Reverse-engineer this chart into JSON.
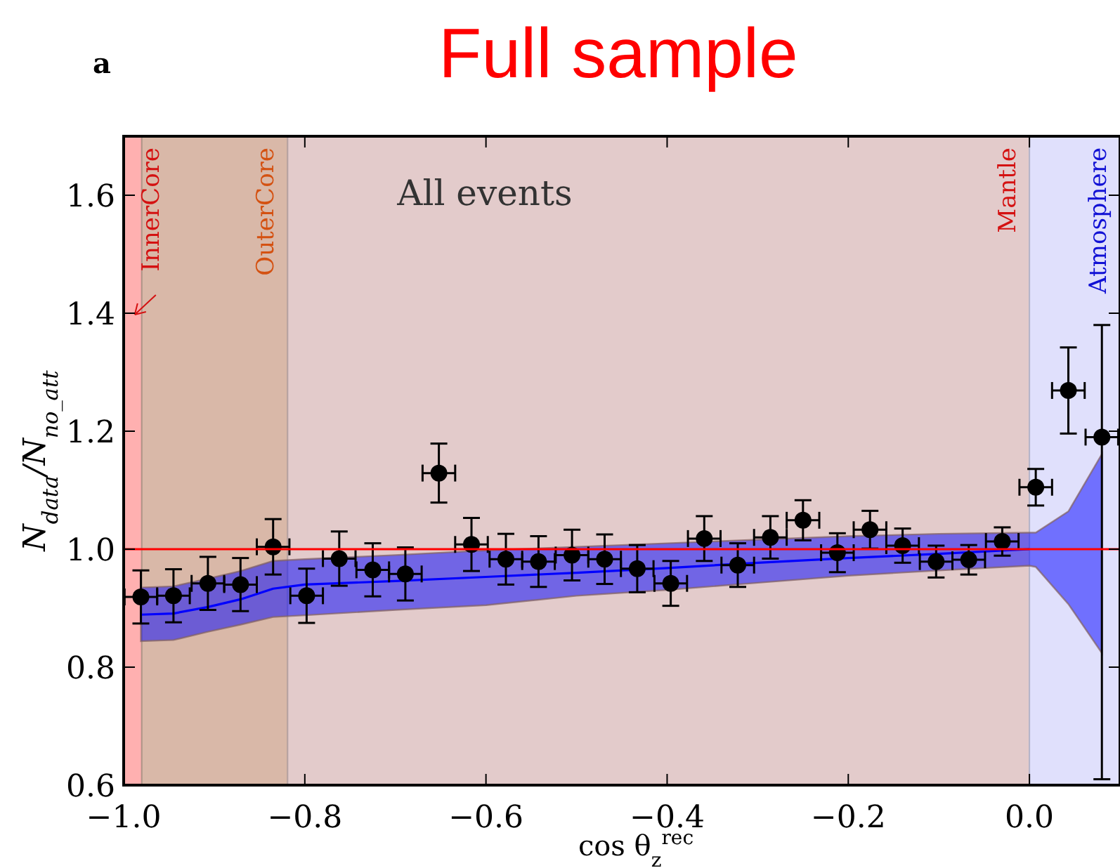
{
  "chart_data": {
    "type": "scatter",
    "title": "Full sample",
    "xlabel": "cos θ$_{z}$$^{rec}$",
    "ylabel": "N$_{data}$/N$_{no_att}$",
    "annotations": [
      "a",
      "All events"
    ],
    "xlim": [
      -1.0,
      0.1
    ],
    "ylim": [
      0.6,
      1.7
    ],
    "xticks": [
      {
        "value": -1,
        "label": "−1.0"
      },
      {
        "value": -0.8,
        "label": "−0.8"
      },
      {
        "value": -0.6,
        "label": "−0.6"
      },
      {
        "value": -0.4,
        "label": "−0.4"
      },
      {
        "value": -0.2,
        "label": "−0.2"
      },
      {
        "value": 0,
        "label": "0.0"
      }
    ],
    "yticks": [
      0.6,
      0.8,
      {
        "value": 1,
        "label": "1.0"
      },
      1.2,
      1.4,
      1.6
    ],
    "grid": false,
    "bands": [
      {
        "axis": "x",
        "from": -1.0,
        "to": -0.98,
        "label": "InnerCore",
        "color": "#ffb0b0"
      },
      {
        "axis": "x",
        "from": -0.98,
        "to": -0.819,
        "label": "OuterCore",
        "color": "#d9b8a8"
      },
      {
        "axis": "x",
        "from": -0.819,
        "to": 0,
        "label": "Mantle",
        "color": "#e3cbcb"
      },
      {
        "axis": "x",
        "from": 0,
        "to": 0.1,
        "label": "Atmosphere",
        "color": "#e0e0fc"
      }
    ],
    "ref_lines": [
      {
        "axis": "y",
        "value": 1,
        "color": "#ff0000"
      }
    ],
    "series": [
      {
        "type": "line",
        "color": "#0000ff",
        "line_style": "solid",
        "marker": "none",
        "x": [
          -0.981,
          -0.945,
          -0.907,
          -0.871,
          -0.835,
          -0.8,
          -0.7,
          -0.6,
          -0.5,
          -0.4,
          -0.3,
          -0.2,
          -0.1,
          0,
          0.007,
          0.043,
          0.08
        ],
        "values": [
          0.889,
          0.891,
          0.902,
          0.915,
          0.933,
          0.94,
          0.946,
          0.953,
          0.96,
          0.968,
          0.977,
          0.985,
          0.992,
          1.0,
          null,
          null,
          null
        ],
        "lower": [
          0.844,
          0.846,
          0.86,
          0.872,
          0.885,
          0.888,
          0.897,
          0.905,
          0.921,
          0.931,
          0.943,
          0.955,
          0.964,
          0.972,
          0.97,
          0.907,
          0.824
        ],
        "upper": [
          0.935,
          0.937,
          0.95,
          0.963,
          0.98,
          0.983,
          0.99,
          0.998,
          1.004,
          1.01,
          1.016,
          1.022,
          1.026,
          1.028,
          1.028,
          1.064,
          1.161
        ]
      },
      {
        "type": "scatter",
        "color": "#000000",
        "marker": "circle",
        "x": [
          -0.981,
          -0.945,
          -0.907,
          -0.871,
          -0.835,
          -0.798,
          -0.762,
          -0.725,
          -0.689,
          -0.652,
          -0.616,
          -0.578,
          -0.542,
          -0.505,
          -0.469,
          -0.433,
          -0.396,
          -0.359,
          -0.322,
          -0.286,
          -0.25,
          -0.212,
          -0.176,
          -0.14,
          -0.103,
          -0.067,
          -0.03,
          0.007,
          0.043,
          0.08
        ],
        "values": [
          0.919,
          0.921,
          0.942,
          0.94,
          1.004,
          0.921,
          0.984,
          0.965,
          0.958,
          1.129,
          1.008,
          0.983,
          0.979,
          0.99,
          0.983,
          0.967,
          0.942,
          1.018,
          0.973,
          1.02,
          1.049,
          0.994,
          1.033,
          1.006,
          0.979,
          0.982,
          1.013,
          1.105,
          1.269,
          1.19
        ],
        "errors": [
          0.045,
          0.045,
          0.045,
          0.045,
          0.047,
          0.046,
          0.046,
          0.045,
          0.045,
          0.05,
          0.045,
          0.043,
          0.043,
          0.043,
          0.042,
          0.04,
          0.038,
          0.038,
          0.037,
          0.036,
          0.034,
          0.033,
          0.032,
          0.029,
          0.027,
          0.025,
          0.024,
          0.031,
          0.073,
          [
            0.61,
            1.38
          ]
        ],
        "xerrors": [
          0.018,
          0.018,
          0.018,
          0.018,
          0.018,
          0.018,
          0.018,
          0.018,
          0.018,
          0.018,
          0.018,
          0.018,
          0.018,
          0.018,
          0.018,
          0.018,
          0.018,
          0.018,
          0.018,
          0.018,
          0.018,
          0.018,
          0.018,
          0.018,
          0.018,
          0.018,
          0.018,
          0.018,
          0.018,
          0.018
        ]
      }
    ]
  }
}
